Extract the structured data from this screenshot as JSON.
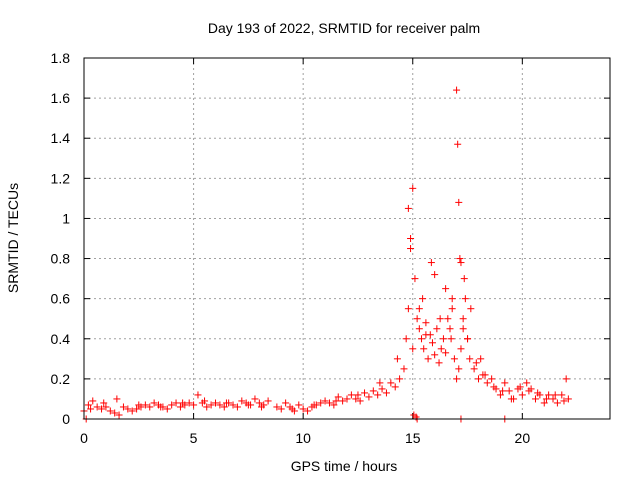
{
  "chart_data": {
    "type": "scatter",
    "title": "Day 193 of 2022, SRMTID for receiver palm",
    "xlabel": "GPS time / hours",
    "ylabel": "SRMTID / TECUs",
    "xlim": [
      0,
      24
    ],
    "ylim": [
      0,
      1.8
    ],
    "xticks": [
      0,
      5,
      10,
      15,
      20
    ],
    "xtick_labels": [
      "0",
      "5",
      "10",
      "15",
      "20"
    ],
    "yticks": [
      0,
      0.2,
      0.4,
      0.6,
      0.8,
      1.0,
      1.2,
      1.4,
      1.6,
      1.8
    ],
    "ytick_labels": [
      "0",
      "0.2",
      "0.4",
      "0.6",
      "0.8",
      "1",
      "1.2",
      "1.4",
      "1.6",
      "1.8"
    ],
    "grid": true,
    "marker": "+",
    "series": [
      {
        "name": "SRMTID",
        "color": "#ff0000",
        "x": [
          0.0,
          0.2,
          0.4,
          0.6,
          0.8,
          1.0,
          1.2,
          1.4,
          1.6,
          1.8,
          2.0,
          2.2,
          2.4,
          2.6,
          2.8,
          3.0,
          3.2,
          3.4,
          3.6,
          3.8,
          4.0,
          4.2,
          4.4,
          4.6,
          4.8,
          5.0,
          5.2,
          5.4,
          5.6,
          5.8,
          6.0,
          6.2,
          6.4,
          6.6,
          6.8,
          7.0,
          7.2,
          7.4,
          7.6,
          7.8,
          8.0,
          8.2,
          8.4,
          8.8,
          9.0,
          9.2,
          9.4,
          9.6,
          9.8,
          10.0,
          10.2,
          10.4,
          10.6,
          10.8,
          11.0,
          11.2,
          11.4,
          11.6,
          11.8,
          12.0,
          12.2,
          12.4,
          12.6,
          12.8,
          13.0,
          13.2,
          13.4,
          13.6,
          13.8,
          14.0,
          14.2,
          14.4,
          14.6,
          14.7,
          14.8,
          14.9,
          15.0,
          15.1,
          15.2,
          15.3,
          15.4,
          15.5,
          15.6,
          15.7,
          15.8,
          15.9,
          16.0,
          16.1,
          16.2,
          16.3,
          16.4,
          16.5,
          16.6,
          16.7,
          16.8,
          16.9,
          17.0,
          17.1,
          17.2,
          17.3,
          17.4,
          17.5,
          17.6,
          17.8,
          18.0,
          18.2,
          18.4,
          18.6,
          18.8,
          19.0,
          19.2,
          19.4,
          19.6,
          19.8,
          20.0,
          20.2,
          20.4,
          20.6,
          20.8,
          21.0,
          21.2,
          21.4,
          21.6,
          21.8,
          22.0,
          22.1,
          0.3,
          0.9,
          1.5,
          2.5,
          3.5,
          4.5,
          5.5,
          6.5,
          7.5,
          8.1,
          9.5,
          10.5,
          11.5,
          12.5,
          13.5,
          14.3,
          14.8,
          14.9,
          15.0,
          15.3,
          15.6,
          16.0,
          16.5,
          16.8,
          17.0,
          17.05,
          17.1,
          17.2,
          17.3,
          17.5,
          17.9,
          18.3,
          18.7,
          19.1,
          19.5,
          19.9,
          20.3,
          20.7,
          21.1,
          21.5,
          21.9,
          15.05,
          15.15,
          15.45,
          15.85,
          16.25,
          16.75,
          17.15,
          17.35,
          17.65,
          18.1
        ],
        "y": [
          0.04,
          0.07,
          0.09,
          0.06,
          0.05,
          0.06,
          0.04,
          0.03,
          0.02,
          0.06,
          0.05,
          0.04,
          0.05,
          0.06,
          0.07,
          0.06,
          0.08,
          0.07,
          0.06,
          0.05,
          0.07,
          0.08,
          0.06,
          0.07,
          0.08,
          0.07,
          0.12,
          0.08,
          0.06,
          0.07,
          0.08,
          0.07,
          0.06,
          0.08,
          0.07,
          0.06,
          0.09,
          0.08,
          0.07,
          0.1,
          0.08,
          0.07,
          0.09,
          0.06,
          0.05,
          0.08,
          0.06,
          0.04,
          0.07,
          0.05,
          0.04,
          0.06,
          0.07,
          0.08,
          0.09,
          0.08,
          0.07,
          0.11,
          0.09,
          0.1,
          0.12,
          0.1,
          0.09,
          0.13,
          0.11,
          0.14,
          0.12,
          0.15,
          0.13,
          0.18,
          0.16,
          0.2,
          0.25,
          0.4,
          0.55,
          0.9,
          1.15,
          0.7,
          0.5,
          0.45,
          0.4,
          0.35,
          0.48,
          0.3,
          0.42,
          0.38,
          0.32,
          0.45,
          0.28,
          0.35,
          0.4,
          0.33,
          0.5,
          0.45,
          0.6,
          0.3,
          0.2,
          0.25,
          0.35,
          0.5,
          0.6,
          0.4,
          0.3,
          0.25,
          0.2,
          0.22,
          0.18,
          0.2,
          0.15,
          0.12,
          0.18,
          0.14,
          0.1,
          0.15,
          0.12,
          0.18,
          0.15,
          0.1,
          0.12,
          0.08,
          0.12,
          0.1,
          0.08,
          0.12,
          0.2,
          0.1,
          0.05,
          0.08,
          0.1,
          0.07,
          0.06,
          0.08,
          0.09,
          0.08,
          0.07,
          0.06,
          0.05,
          0.07,
          0.09,
          0.12,
          0.18,
          0.3,
          1.05,
          0.85,
          0.35,
          0.55,
          0.42,
          0.72,
          0.65,
          0.55,
          1.64,
          1.37,
          1.08,
          0.78,
          0.45,
          0.4,
          0.28,
          0.22,
          0.16,
          0.14,
          0.1,
          0.16,
          0.14,
          0.13,
          0.1,
          0.12,
          0.09,
          0.02,
          0.01,
          0.6,
          0.78,
          0.5,
          0.4,
          0.8,
          0.7,
          0.55,
          0.3
        ],
        "x_outliers_zero": [
          0.1,
          15.2,
          17.2,
          19.2
        ]
      }
    ]
  }
}
